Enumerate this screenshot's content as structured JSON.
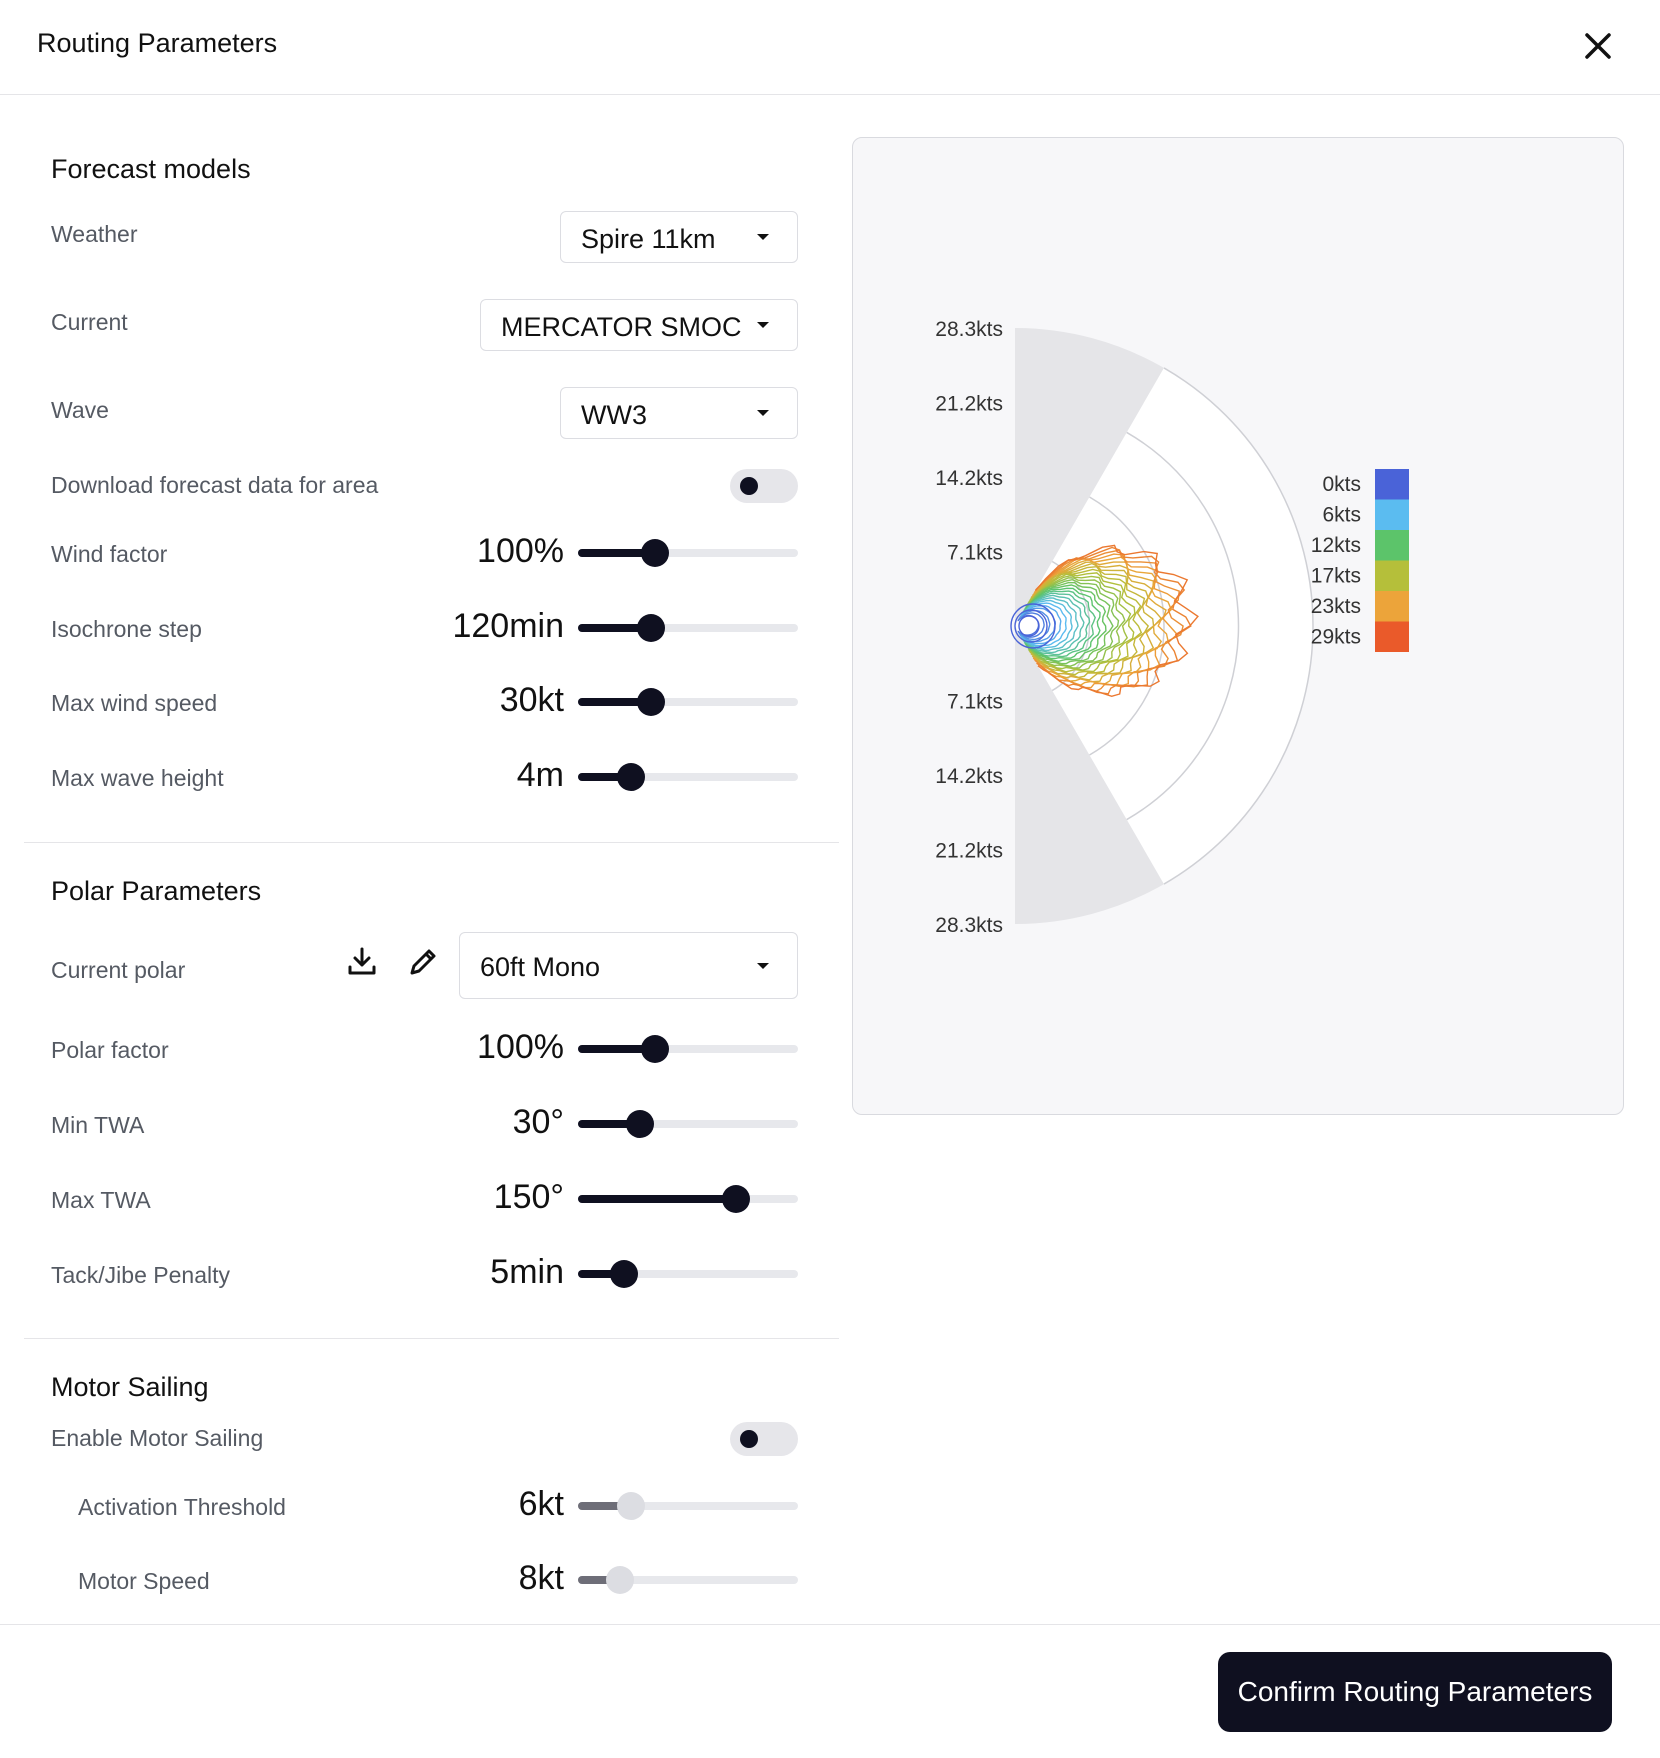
{
  "dialog": {
    "title": "Routing Parameters"
  },
  "forecast": {
    "section_title": "Forecast models",
    "weather": {
      "label": "Weather",
      "value": "Spire 11km"
    },
    "current": {
      "label": "Current",
      "value": "MERCATOR SMOC"
    },
    "wave": {
      "label": "Wave",
      "value": "WW3"
    },
    "download": {
      "label": "Download forecast data for area",
      "enabled": false
    },
    "wind_factor": {
      "label": "Wind factor",
      "value": "100%",
      "level": 0.35
    },
    "isochrone_step": {
      "label": "Isochrone step",
      "value": "120min",
      "level": 0.33
    },
    "max_wind_speed": {
      "label": "Max wind speed",
      "value": "30kt",
      "level": 0.33
    },
    "max_wave_height": {
      "label": "Max wave height",
      "value": "4m",
      "level": 0.24
    }
  },
  "polar": {
    "section_title": "Polar Parameters",
    "current_polar": {
      "label": "Current polar",
      "value": "60ft Mono"
    },
    "polar_factor": {
      "label": "Polar factor",
      "value": "100%",
      "level": 0.35
    },
    "min_twa": {
      "label": "Min TWA",
      "value": "30°",
      "level": 0.28
    },
    "max_twa": {
      "label": "Max TWA",
      "value": "150°",
      "level": 0.72
    },
    "tack_penalty": {
      "label": "Tack/Jibe Penalty",
      "value": "5min",
      "level": 0.21
    }
  },
  "motor": {
    "section_title": "Motor Sailing",
    "enable": {
      "label": "Enable Motor Sailing",
      "enabled": false
    },
    "activation_threshold": {
      "label": "Activation Threshold",
      "value": "6kt",
      "level": 0.24
    },
    "motor_speed": {
      "label": "Motor Speed",
      "value": "8kt",
      "level": 0.19
    }
  },
  "chart_data": {
    "type": "polar",
    "radial_ticks_top": [
      "28.3kts",
      "21.2kts",
      "14.2kts",
      "7.1kts"
    ],
    "radial_ticks_bottom": [
      "7.1kts",
      "14.2kts",
      "21.2kts",
      "28.3kts"
    ],
    "legend": [
      {
        "label": "0kts",
        "color": "#4a63d8"
      },
      {
        "label": "6kts",
        "color": "#5bbcf0"
      },
      {
        "label": "12kts",
        "color": "#5cc46a"
      },
      {
        "label": "17kts",
        "color": "#b5bf3a"
      },
      {
        "label": "23kts",
        "color": "#eca43a"
      },
      {
        "label": "29kts",
        "color": "#ea5a2a"
      }
    ]
  },
  "footer": {
    "confirm_label": "Confirm Routing Parameters"
  }
}
